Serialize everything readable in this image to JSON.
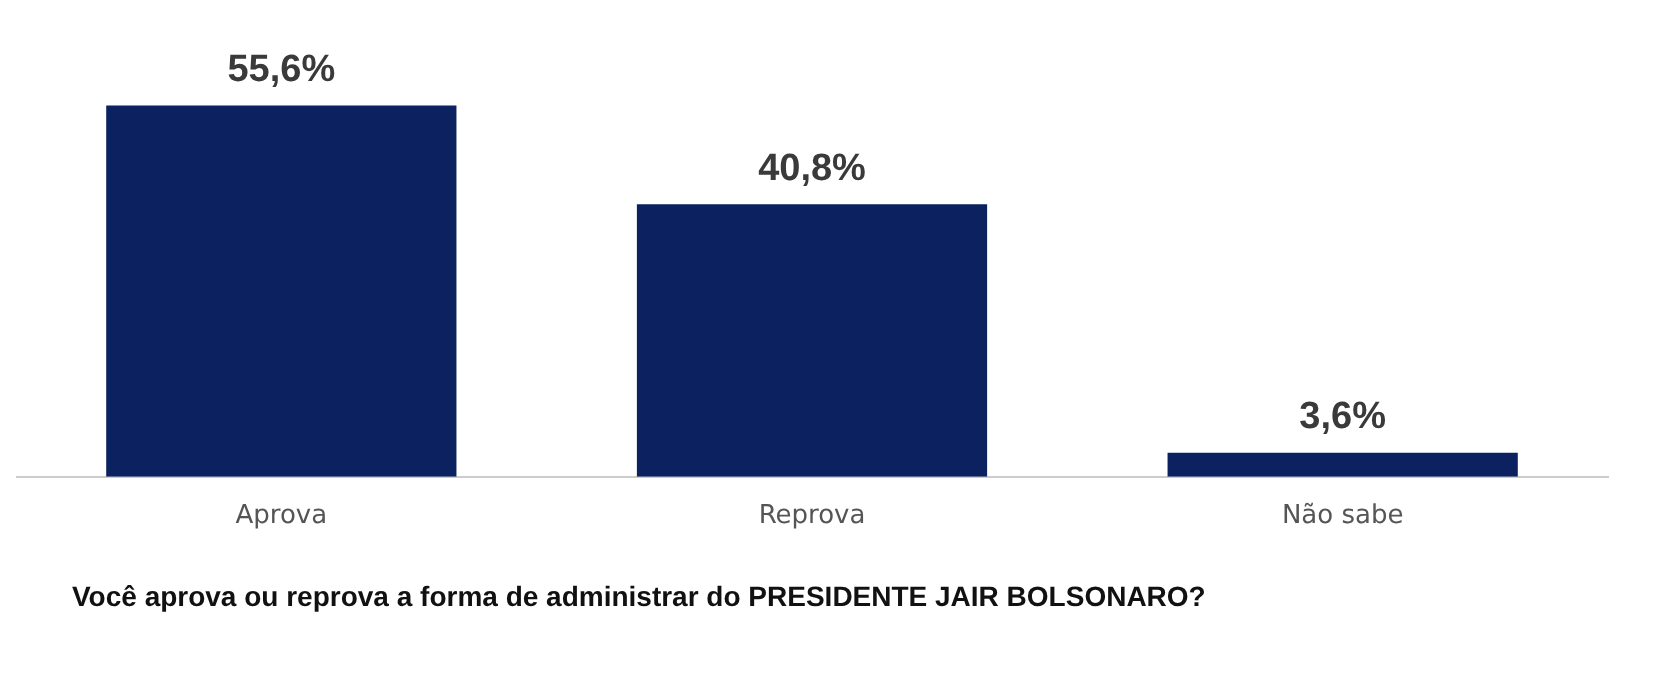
{
  "chart_data": {
    "type": "bar",
    "title": "Você aprova ou reprova a forma de administrar do PRESIDENTE JAIR BOLSONARO?",
    "categories": [
      "Aprova",
      "Reprova",
      "Não sabe"
    ],
    "values": [
      55.6,
      40.8,
      3.6
    ],
    "color": "#0b2160",
    "value_labels": [
      "55,6%",
      "40,8%",
      "3,6%"
    ],
    "grid": false,
    "legend": false
  }
}
